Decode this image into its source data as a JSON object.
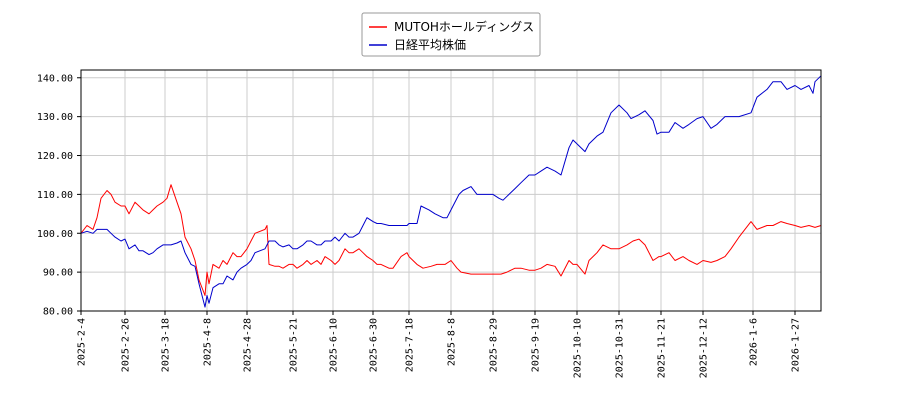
{
  "chart_data": {
    "type": "line",
    "title": "",
    "xlabel": "",
    "ylabel": "",
    "ylim": [
      80,
      142
    ],
    "xlim": [
      "2025-02-04",
      "2026-02-09"
    ],
    "grid": true,
    "legend_position": "top-center",
    "y_ticks": [
      "80.00",
      "90.00",
      "100.00",
      "110.00",
      "120.00",
      "130.00",
      "140.00"
    ],
    "x_ticks": [
      "2025-2-4",
      "2025-2-26",
      "2025-3-18",
      "2025-4-8",
      "2025-4-28",
      "2025-5-21",
      "2025-6-10",
      "2025-6-30",
      "2025-7-18",
      "2025-8-8",
      "2025-8-29",
      "2025-9-19",
      "2025-10-10",
      "2025-10-31",
      "2025-11-21",
      "2025-12-12",
      "2026-1-6",
      "2026-1-27"
    ],
    "series": [
      {
        "name": "MUTOHホールディングス",
        "color": "#ff0000",
        "points": [
          [
            "2025-02-04",
            100
          ],
          [
            "2025-02-07",
            102
          ],
          [
            "2025-02-10",
            101
          ],
          [
            "2025-02-12",
            104
          ],
          [
            "2025-02-14",
            109
          ],
          [
            "2025-02-17",
            111
          ],
          [
            "2025-02-19",
            110
          ],
          [
            "2025-02-21",
            108
          ],
          [
            "2025-02-24",
            107
          ],
          [
            "2025-02-26",
            107
          ],
          [
            "2025-02-28",
            105
          ],
          [
            "2025-03-03",
            108
          ],
          [
            "2025-03-05",
            107
          ],
          [
            "2025-03-07",
            106
          ],
          [
            "2025-03-10",
            105
          ],
          [
            "2025-03-12",
            106
          ],
          [
            "2025-03-14",
            107
          ],
          [
            "2025-03-17",
            108
          ],
          [
            "2025-03-19",
            109
          ],
          [
            "2025-03-21",
            112.5
          ],
          [
            "2025-03-24",
            108
          ],
          [
            "2025-03-26",
            105
          ],
          [
            "2025-03-28",
            99
          ],
          [
            "2025-03-31",
            96
          ],
          [
            "2025-04-02",
            93
          ],
          [
            "2025-04-04",
            88
          ],
          [
            "2025-04-07",
            84
          ],
          [
            "2025-04-08",
            90
          ],
          [
            "2025-04-09",
            87
          ],
          [
            "2025-04-11",
            92
          ],
          [
            "2025-04-14",
            91
          ],
          [
            "2025-04-16",
            93
          ],
          [
            "2025-04-18",
            92
          ],
          [
            "2025-04-21",
            95
          ],
          [
            "2025-04-23",
            94
          ],
          [
            "2025-04-25",
            94
          ],
          [
            "2025-04-28",
            96
          ],
          [
            "2025-04-30",
            98
          ],
          [
            "2025-05-02",
            100
          ],
          [
            "2025-05-07",
            101
          ],
          [
            "2025-05-08",
            102
          ],
          [
            "2025-05-09",
            92
          ],
          [
            "2025-05-12",
            91.5
          ],
          [
            "2025-05-14",
            91.5
          ],
          [
            "2025-05-16",
            91
          ],
          [
            "2025-05-19",
            92
          ],
          [
            "2025-05-21",
            92
          ],
          [
            "2025-05-23",
            91
          ],
          [
            "2025-05-26",
            92
          ],
          [
            "2025-05-28",
            93
          ],
          [
            "2025-05-30",
            92
          ],
          [
            "2025-06-02",
            93
          ],
          [
            "2025-06-04",
            92
          ],
          [
            "2025-06-06",
            94
          ],
          [
            "2025-06-09",
            93
          ],
          [
            "2025-06-11",
            92
          ],
          [
            "2025-06-13",
            93
          ],
          [
            "2025-06-16",
            96
          ],
          [
            "2025-06-18",
            95
          ],
          [
            "2025-06-20",
            95
          ],
          [
            "2025-06-23",
            96
          ],
          [
            "2025-06-25",
            95
          ],
          [
            "2025-06-27",
            94
          ],
          [
            "2025-06-30",
            93
          ],
          [
            "2025-07-02",
            92
          ],
          [
            "2025-07-04",
            92
          ],
          [
            "2025-07-08",
            91
          ],
          [
            "2025-07-10",
            91
          ],
          [
            "2025-07-14",
            94
          ],
          [
            "2025-07-17",
            95
          ],
          [
            "2025-07-18",
            94
          ],
          [
            "2025-07-22",
            92
          ],
          [
            "2025-07-25",
            91
          ],
          [
            "2025-07-29",
            91.5
          ],
          [
            "2025-08-01",
            92
          ],
          [
            "2025-08-05",
            92
          ],
          [
            "2025-08-08",
            93
          ],
          [
            "2025-08-11",
            91
          ],
          [
            "2025-08-13",
            90
          ],
          [
            "2025-08-18",
            89.5
          ],
          [
            "2025-08-21",
            89.5
          ],
          [
            "2025-08-25",
            89.5
          ],
          [
            "2025-08-29",
            89.5
          ],
          [
            "2025-09-02",
            89.5
          ],
          [
            "2025-09-05",
            90
          ],
          [
            "2025-09-09",
            91
          ],
          [
            "2025-09-12",
            91
          ],
          [
            "2025-09-16",
            90.5
          ],
          [
            "2025-09-19",
            90.5
          ],
          [
            "2025-09-22",
            91
          ],
          [
            "2025-09-25",
            92
          ],
          [
            "2025-09-29",
            91.5
          ],
          [
            "2025-10-02",
            89
          ],
          [
            "2025-10-06",
            93
          ],
          [
            "2025-10-08",
            92
          ],
          [
            "2025-10-10",
            92
          ],
          [
            "2025-10-14",
            89.5
          ],
          [
            "2025-10-16",
            93
          ],
          [
            "2025-10-20",
            95
          ],
          [
            "2025-10-23",
            97
          ],
          [
            "2025-10-27",
            96
          ],
          [
            "2025-10-31",
            96
          ],
          [
            "2025-11-04",
            97
          ],
          [
            "2025-11-07",
            98
          ],
          [
            "2025-11-10",
            98.5
          ],
          [
            "2025-11-13",
            97
          ],
          [
            "2025-11-17",
            93
          ],
          [
            "2025-11-20",
            94
          ],
          [
            "2025-11-21",
            94
          ],
          [
            "2025-11-25",
            95
          ],
          [
            "2025-11-28",
            93
          ],
          [
            "2025-12-02",
            94
          ],
          [
            "2025-12-05",
            93
          ],
          [
            "2025-12-09",
            92
          ],
          [
            "2025-12-12",
            93
          ],
          [
            "2025-12-16",
            92.5
          ],
          [
            "2025-12-19",
            93
          ],
          [
            "2025-12-23",
            94
          ],
          [
            "2025-12-26",
            96
          ],
          [
            "2025-12-30",
            99
          ],
          [
            "2026-01-05",
            103
          ],
          [
            "2026-01-08",
            101
          ],
          [
            "2026-01-13",
            102
          ],
          [
            "2026-01-16",
            102
          ],
          [
            "2026-01-20",
            103
          ],
          [
            "2026-01-23",
            102.5
          ],
          [
            "2026-01-27",
            102
          ],
          [
            "2026-01-30",
            101.5
          ],
          [
            "2026-02-03",
            102
          ],
          [
            "2026-02-06",
            101.5
          ],
          [
            "2026-02-09",
            102
          ]
        ]
      },
      {
        "name": "日経平均株価",
        "color": "#0000cc",
        "points": [
          [
            "2025-02-04",
            100
          ],
          [
            "2025-02-07",
            100.5
          ],
          [
            "2025-02-10",
            100
          ],
          [
            "2025-02-12",
            101
          ],
          [
            "2025-02-14",
            101
          ],
          [
            "2025-02-17",
            101
          ],
          [
            "2025-02-19",
            100
          ],
          [
            "2025-02-21",
            99
          ],
          [
            "2025-02-24",
            98
          ],
          [
            "2025-02-26",
            98.5
          ],
          [
            "2025-02-28",
            96
          ],
          [
            "2025-03-03",
            97
          ],
          [
            "2025-03-05",
            95.5
          ],
          [
            "2025-03-07",
            95.5
          ],
          [
            "2025-03-10",
            94.5
          ],
          [
            "2025-03-12",
            95
          ],
          [
            "2025-03-14",
            96
          ],
          [
            "2025-03-17",
            97
          ],
          [
            "2025-03-19",
            97
          ],
          [
            "2025-03-21",
            97
          ],
          [
            "2025-03-24",
            97.5
          ],
          [
            "2025-03-26",
            98
          ],
          [
            "2025-03-28",
            95
          ],
          [
            "2025-03-31",
            92
          ],
          [
            "2025-04-02",
            91.5
          ],
          [
            "2025-04-04",
            87
          ],
          [
            "2025-04-07",
            81
          ],
          [
            "2025-04-08",
            84
          ],
          [
            "2025-04-09",
            82
          ],
          [
            "2025-04-11",
            86
          ],
          [
            "2025-04-14",
            87
          ],
          [
            "2025-04-16",
            87
          ],
          [
            "2025-04-18",
            89
          ],
          [
            "2025-04-21",
            88
          ],
          [
            "2025-04-23",
            90
          ],
          [
            "2025-04-25",
            91
          ],
          [
            "2025-04-28",
            92
          ],
          [
            "2025-04-30",
            93
          ],
          [
            "2025-05-02",
            95
          ],
          [
            "2025-05-07",
            96
          ],
          [
            "2025-05-09",
            98
          ],
          [
            "2025-05-12",
            98
          ],
          [
            "2025-05-14",
            97
          ],
          [
            "2025-05-16",
            96.5
          ],
          [
            "2025-05-19",
            97
          ],
          [
            "2025-05-21",
            96
          ],
          [
            "2025-05-23",
            96
          ],
          [
            "2025-05-26",
            97
          ],
          [
            "2025-05-28",
            98
          ],
          [
            "2025-05-30",
            98
          ],
          [
            "2025-06-02",
            97
          ],
          [
            "2025-06-04",
            97
          ],
          [
            "2025-06-06",
            98
          ],
          [
            "2025-06-09",
            98
          ],
          [
            "2025-06-11",
            99
          ],
          [
            "2025-06-13",
            98
          ],
          [
            "2025-06-16",
            100
          ],
          [
            "2025-06-18",
            99
          ],
          [
            "2025-06-20",
            99
          ],
          [
            "2025-06-23",
            100
          ],
          [
            "2025-06-25",
            102
          ],
          [
            "2025-06-27",
            104
          ],
          [
            "2025-06-30",
            103
          ],
          [
            "2025-07-02",
            102.5
          ],
          [
            "2025-07-04",
            102.5
          ],
          [
            "2025-07-08",
            102
          ],
          [
            "2025-07-10",
            102
          ],
          [
            "2025-07-14",
            102
          ],
          [
            "2025-07-17",
            102
          ],
          [
            "2025-07-18",
            102.5
          ],
          [
            "2025-07-22",
            102.5
          ],
          [
            "2025-07-24",
            107
          ],
          [
            "2025-07-28",
            106
          ],
          [
            "2025-07-31",
            105
          ],
          [
            "2025-08-04",
            104
          ],
          [
            "2025-08-06",
            104
          ],
          [
            "2025-08-08",
            106
          ],
          [
            "2025-08-12",
            110
          ],
          [
            "2025-08-14",
            111
          ],
          [
            "2025-08-18",
            112
          ],
          [
            "2025-08-21",
            110
          ],
          [
            "2025-08-25",
            110
          ],
          [
            "2025-08-29",
            110
          ],
          [
            "2025-09-01",
            109
          ],
          [
            "2025-09-03",
            108.5
          ],
          [
            "2025-09-05",
            109.5
          ],
          [
            "2025-09-09",
            111.5
          ],
          [
            "2025-09-12",
            113
          ],
          [
            "2025-09-16",
            115
          ],
          [
            "2025-09-19",
            115
          ],
          [
            "2025-09-22",
            116
          ],
          [
            "2025-09-25",
            117
          ],
          [
            "2025-09-29",
            116
          ],
          [
            "2025-10-02",
            115
          ],
          [
            "2025-10-06",
            122
          ],
          [
            "2025-10-08",
            124
          ],
          [
            "2025-10-10",
            123
          ],
          [
            "2025-10-14",
            121
          ],
          [
            "2025-10-16",
            123
          ],
          [
            "2025-10-20",
            125
          ],
          [
            "2025-10-23",
            126
          ],
          [
            "2025-10-27",
            131
          ],
          [
            "2025-10-31",
            133
          ],
          [
            "2025-11-04",
            131
          ],
          [
            "2025-11-06",
            129.5
          ],
          [
            "2025-11-10",
            130.5
          ],
          [
            "2025-11-13",
            131.5
          ],
          [
            "2025-11-17",
            129
          ],
          [
            "2025-11-19",
            125.5
          ],
          [
            "2025-11-21",
            126
          ],
          [
            "2025-11-25",
            126
          ],
          [
            "2025-11-28",
            128.5
          ],
          [
            "2025-12-02",
            127
          ],
          [
            "2025-12-05",
            128
          ],
          [
            "2025-12-09",
            129.5
          ],
          [
            "2025-12-12",
            130
          ],
          [
            "2025-12-16",
            127
          ],
          [
            "2025-12-19",
            128
          ],
          [
            "2025-12-23",
            130
          ],
          [
            "2025-12-26",
            130
          ],
          [
            "2025-12-30",
            130
          ],
          [
            "2026-01-05",
            131
          ],
          [
            "2026-01-08",
            135
          ],
          [
            "2026-01-13",
            137
          ],
          [
            "2026-01-16",
            139
          ],
          [
            "2026-01-20",
            139
          ],
          [
            "2026-01-23",
            137
          ],
          [
            "2026-01-27",
            138
          ],
          [
            "2026-01-30",
            137
          ],
          [
            "2026-02-03",
            138
          ],
          [
            "2026-02-05",
            136
          ],
          [
            "2026-02-06",
            139
          ],
          [
            "2026-02-09",
            140.5
          ]
        ]
      }
    ]
  }
}
